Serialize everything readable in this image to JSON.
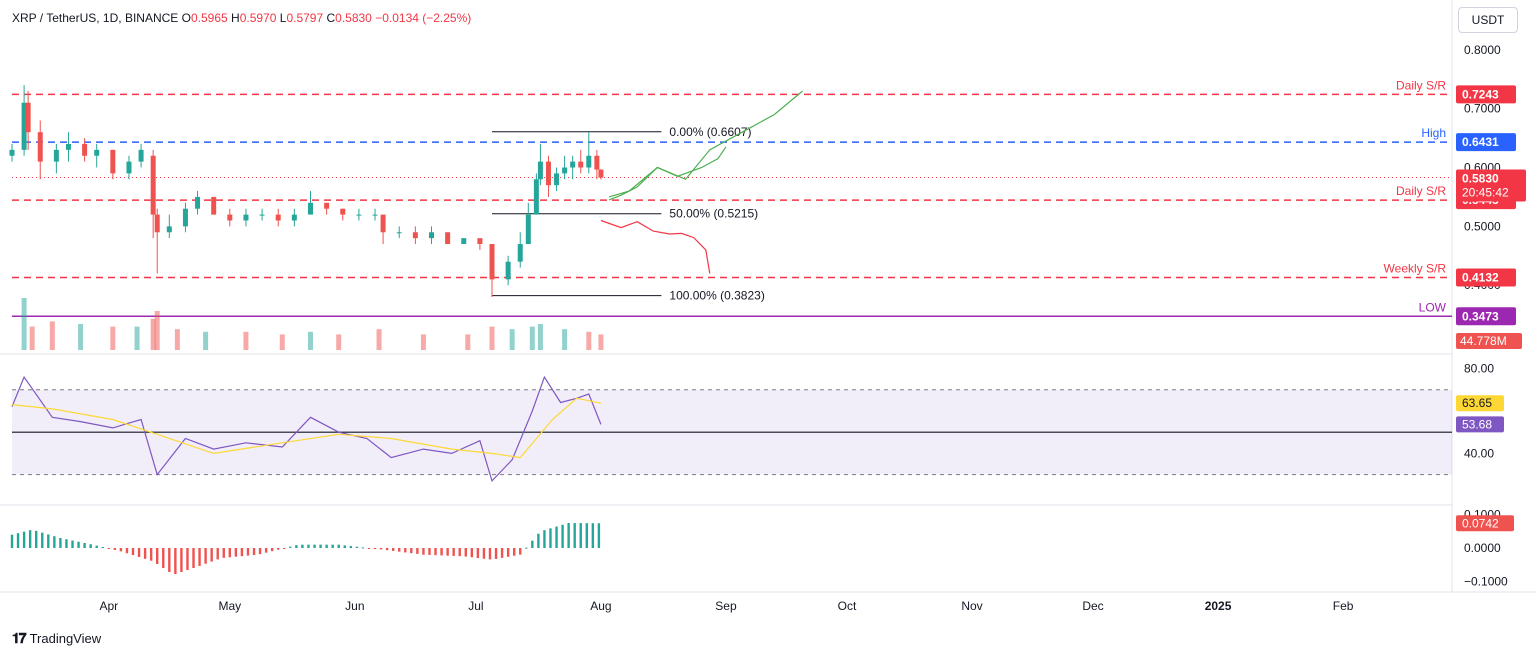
{
  "header": {
    "symbol": "XRP / TetherUS, 1D, BINANCE",
    "open_label": "O",
    "open": "0.5965",
    "high_label": "H",
    "high": "0.5970",
    "low_label": "L",
    "low": "0.5797",
    "close_label": "C",
    "close": "0.5830",
    "change": "−0.0134 (−2.25%)"
  },
  "currency_button": "USDT",
  "branding": {
    "name": "TradingView",
    "logo_icon": "tradingview-logo-icon"
  },
  "colors": {
    "up": "#26a69a",
    "down": "#ef5350",
    "sr_red": "#f23645",
    "high_blue": "#2962ff",
    "low_purple": "#9c27b0",
    "rsi": "#7e57c2",
    "rsi_ma": "#fdd835",
    "projection_green": "#4caf50",
    "projection_red": "#f23645",
    "current_price": "#f23645",
    "macd_up": "#26a69a",
    "macd_down": "#ef5350"
  },
  "chart_data": [
    {
      "type": "candlestick",
      "title": "XRP / TetherUS, 1D, BINANCE",
      "ylim": [
        0.29,
        0.82
      ],
      "y_ticks": [
        "0.8000",
        "0.7000",
        "0.6000",
        "0.5000",
        "0.4000",
        "0.3000"
      ],
      "x_ticks": [
        "Apr",
        "May",
        "Jun",
        "Jul",
        "Aug",
        "Sep",
        "Oct",
        "Nov",
        "Dec",
        "2025",
        "Feb"
      ],
      "x_range": [
        "2024-03-08",
        "2025-02-28"
      ],
      "ohlc_points": [
        [
          "2024-03-08",
          0.62,
          0.64,
          0.61,
          0.63
        ],
        [
          "2024-03-11",
          0.63,
          0.74,
          0.62,
          0.71
        ],
        [
          "2024-03-12",
          0.71,
          0.73,
          0.63,
          0.66
        ],
        [
          "2024-03-15",
          0.66,
          0.68,
          0.58,
          0.61
        ],
        [
          "2024-03-19",
          0.61,
          0.64,
          0.59,
          0.63
        ],
        [
          "2024-03-22",
          0.63,
          0.66,
          0.61,
          0.64
        ],
        [
          "2024-03-26",
          0.64,
          0.65,
          0.61,
          0.62
        ],
        [
          "2024-03-29",
          0.62,
          0.64,
          0.6,
          0.63
        ],
        [
          "2024-04-02",
          0.63,
          0.63,
          0.58,
          0.59
        ],
        [
          "2024-04-06",
          0.59,
          0.62,
          0.58,
          0.61
        ],
        [
          "2024-04-09",
          0.61,
          0.64,
          0.6,
          0.63
        ],
        [
          "2024-04-12",
          0.62,
          0.63,
          0.48,
          0.52
        ],
        [
          "2024-04-13",
          0.52,
          0.53,
          0.42,
          0.49
        ],
        [
          "2024-04-16",
          0.49,
          0.52,
          0.48,
          0.5
        ],
        [
          "2024-04-20",
          0.5,
          0.54,
          0.49,
          0.53
        ],
        [
          "2024-04-23",
          0.53,
          0.56,
          0.52,
          0.55
        ],
        [
          "2024-04-27",
          0.55,
          0.55,
          0.52,
          0.52
        ],
        [
          "2024-05-01",
          0.52,
          0.53,
          0.5,
          0.51
        ],
        [
          "2024-05-05",
          0.51,
          0.53,
          0.5,
          0.52
        ],
        [
          "2024-05-09",
          0.52,
          0.53,
          0.51,
          0.52
        ],
        [
          "2024-05-13",
          0.52,
          0.53,
          0.5,
          0.51
        ],
        [
          "2024-05-17",
          0.51,
          0.53,
          0.5,
          0.52
        ],
        [
          "2024-05-21",
          0.52,
          0.56,
          0.52,
          0.54
        ],
        [
          "2024-05-25",
          0.54,
          0.54,
          0.52,
          0.53
        ],
        [
          "2024-05-29",
          0.53,
          0.53,
          0.51,
          0.52
        ],
        [
          "2024-06-02",
          0.52,
          0.53,
          0.51,
          0.52
        ],
        [
          "2024-06-06",
          0.52,
          0.53,
          0.51,
          0.52
        ],
        [
          "2024-06-08",
          0.52,
          0.52,
          0.47,
          0.49
        ],
        [
          "2024-06-12",
          0.49,
          0.5,
          0.48,
          0.49
        ],
        [
          "2024-06-16",
          0.49,
          0.5,
          0.47,
          0.48
        ],
        [
          "2024-06-20",
          0.48,
          0.5,
          0.47,
          0.49
        ],
        [
          "2024-06-24",
          0.49,
          0.49,
          0.47,
          0.47
        ],
        [
          "2024-06-28",
          0.47,
          0.48,
          0.47,
          0.48
        ],
        [
          "2024-07-02",
          0.48,
          0.48,
          0.46,
          0.47
        ],
        [
          "2024-07-05",
          0.47,
          0.47,
          0.38,
          0.41
        ],
        [
          "2024-07-09",
          0.41,
          0.45,
          0.4,
          0.44
        ],
        [
          "2024-07-12",
          0.44,
          0.49,
          0.43,
          0.47
        ],
        [
          "2024-07-14",
          0.47,
          0.54,
          0.47,
          0.52
        ],
        [
          "2024-07-16",
          0.52,
          0.59,
          0.52,
          0.58
        ],
        [
          "2024-07-17",
          0.58,
          0.64,
          0.57,
          0.61
        ],
        [
          "2024-07-19",
          0.61,
          0.62,
          0.55,
          0.57
        ],
        [
          "2024-07-21",
          0.57,
          0.6,
          0.56,
          0.59
        ],
        [
          "2024-07-23",
          0.59,
          0.62,
          0.58,
          0.6
        ],
        [
          "2024-07-25",
          0.6,
          0.62,
          0.58,
          0.61
        ],
        [
          "2024-07-27",
          0.61,
          0.63,
          0.59,
          0.6
        ],
        [
          "2024-07-29",
          0.6,
          0.66,
          0.59,
          0.62
        ],
        [
          "2024-07-31",
          0.62,
          0.63,
          0.58,
          0.5965
        ],
        [
          "2024-08-01",
          0.5965,
          0.597,
          0.5797,
          0.583
        ]
      ],
      "current_price": "0.5830",
      "countdown": "20:45:42",
      "horizontal_levels": [
        {
          "label": "Daily S/R",
          "value": 0.7243,
          "value_text": "0.7243",
          "style": "dashed",
          "color": "#f23645"
        },
        {
          "label": "High",
          "value": 0.6431,
          "value_text": "0.6431",
          "style": "dashed",
          "color": "#2962ff"
        },
        {
          "label": "Daily S/R",
          "value": 0.5445,
          "value_text": "0.5445",
          "style": "dashed",
          "color": "#f23645"
        },
        {
          "label": "Weekly S/R",
          "value": 0.4132,
          "value_text": "0.4132",
          "style": "dashed",
          "color": "#f23645"
        },
        {
          "label": "LOW",
          "value": 0.3473,
          "value_text": "0.3473",
          "style": "solid",
          "color": "#9c27b0"
        }
      ],
      "fibonacci": {
        "from_date": "2024-07-05",
        "to_date": "2024-08-16",
        "levels": [
          {
            "label": "0.00% (0.6607)",
            "value": 0.6607
          },
          {
            "label": "50.00% (0.5215)",
            "value": 0.5215
          },
          {
            "label": "100.00% (0.3823)",
            "value": 0.3823
          }
        ]
      },
      "projections": [
        {
          "color": "green",
          "points": [
            [
              "2024-08-03",
              0.55
            ],
            [
              "2024-08-08",
              0.56
            ],
            [
              "2024-08-15",
              0.6
            ],
            [
              "2024-08-22",
              0.58
            ],
            [
              "2024-08-28",
              0.63
            ],
            [
              "2024-09-05",
              0.66
            ],
            [
              "2024-09-13",
              0.69
            ],
            [
              "2024-09-20",
              0.73
            ]
          ]
        },
        {
          "color": "green",
          "points": [
            [
              "2024-08-03",
              0.545
            ],
            [
              "2024-08-06",
              0.553
            ],
            [
              "2024-08-10",
              0.567
            ],
            [
              "2024-08-15",
              0.6
            ],
            [
              "2024-08-20",
              0.585
            ],
            [
              "2024-08-26",
              0.6
            ],
            [
              "2024-08-30",
              0.615
            ],
            [
              "2024-09-01",
              0.635
            ]
          ]
        },
        {
          "color": "red",
          "points": [
            [
              "2024-08-01",
              0.51
            ],
            [
              "2024-08-06",
              0.498
            ],
            [
              "2024-08-10",
              0.508
            ],
            [
              "2024-08-14",
              0.492
            ],
            [
              "2024-08-18",
              0.487
            ],
            [
              "2024-08-21",
              0.488
            ],
            [
              "2024-08-24",
              0.481
            ],
            [
              "2024-08-27",
              0.46
            ],
            [
              "2024-08-28",
              0.42
            ]
          ]
        }
      ]
    },
    {
      "type": "bar",
      "title": "Volume",
      "current_value": "44.778M",
      "x_range": [
        "2024-03-08",
        "2025-02-28"
      ],
      "bars": [
        [
          "2024-03-11",
          1.0,
          "up"
        ],
        [
          "2024-03-13",
          0.45,
          "down"
        ],
        [
          "2024-03-18",
          0.55,
          "down"
        ],
        [
          "2024-03-25",
          0.5,
          "up"
        ],
        [
          "2024-04-02",
          0.45,
          "down"
        ],
        [
          "2024-04-08",
          0.45,
          "up"
        ],
        [
          "2024-04-12",
          0.6,
          "down"
        ],
        [
          "2024-04-13",
          0.75,
          "down"
        ],
        [
          "2024-04-18",
          0.4,
          "down"
        ],
        [
          "2024-04-25",
          0.35,
          "up"
        ],
        [
          "2024-05-05",
          0.35,
          "down"
        ],
        [
          "2024-05-14",
          0.3,
          "down"
        ],
        [
          "2024-05-21",
          0.35,
          "up"
        ],
        [
          "2024-05-28",
          0.3,
          "down"
        ],
        [
          "2024-06-07",
          0.4,
          "down"
        ],
        [
          "2024-06-18",
          0.3,
          "down"
        ],
        [
          "2024-06-29",
          0.3,
          "down"
        ],
        [
          "2024-07-05",
          0.45,
          "down"
        ],
        [
          "2024-07-10",
          0.4,
          "up"
        ],
        [
          "2024-07-15",
          0.45,
          "up"
        ],
        [
          "2024-07-17",
          0.5,
          "up"
        ],
        [
          "2024-07-23",
          0.4,
          "up"
        ],
        [
          "2024-07-29",
          0.35,
          "down"
        ],
        [
          "2024-08-01",
          0.3,
          "down"
        ]
      ]
    },
    {
      "type": "line",
      "title": "RSI",
      "ylim": [
        18,
        85
      ],
      "y_ticks": [
        "80.00",
        "40.00"
      ],
      "band": [
        70,
        30
      ],
      "midline": 50,
      "rsi_value": "53.68",
      "ma_value": "63.65",
      "series": [
        {
          "role": "rsi",
          "points": [
            [
              "2024-03-08",
              62
            ],
            [
              "2024-03-11",
              76
            ],
            [
              "2024-03-18",
              57
            ],
            [
              "2024-03-25",
              55
            ],
            [
              "2024-04-02",
              52
            ],
            [
              "2024-04-09",
              56
            ],
            [
              "2024-04-13",
              30
            ],
            [
              "2024-04-20",
              47
            ],
            [
              "2024-04-27",
              42
            ],
            [
              "2024-05-05",
              45
            ],
            [
              "2024-05-14",
              43
            ],
            [
              "2024-05-21",
              57
            ],
            [
              "2024-05-28",
              50
            ],
            [
              "2024-06-04",
              47
            ],
            [
              "2024-06-10",
              38
            ],
            [
              "2024-06-18",
              42
            ],
            [
              "2024-06-25",
              40
            ],
            [
              "2024-07-02",
              46
            ],
            [
              "2024-07-05",
              27
            ],
            [
              "2024-07-10",
              37
            ],
            [
              "2024-07-15",
              60
            ],
            [
              "2024-07-18",
              76
            ],
            [
              "2024-07-22",
              64
            ],
            [
              "2024-07-26",
              66
            ],
            [
              "2024-07-29",
              68
            ],
            [
              "2024-08-01",
              53.68
            ]
          ]
        },
        {
          "role": "ma",
          "points": [
            [
              "2024-03-08",
              63
            ],
            [
              "2024-03-18",
              61
            ],
            [
              "2024-04-02",
              56
            ],
            [
              "2024-04-13",
              49
            ],
            [
              "2024-04-27",
              40
            ],
            [
              "2024-05-14",
              45
            ],
            [
              "2024-05-28",
              49
            ],
            [
              "2024-06-10",
              47
            ],
            [
              "2024-06-25",
              42
            ],
            [
              "2024-07-05",
              40
            ],
            [
              "2024-07-12",
              38
            ],
            [
              "2024-07-20",
              56
            ],
            [
              "2024-07-26",
              66
            ],
            [
              "2024-08-01",
              63.65
            ]
          ]
        }
      ]
    },
    {
      "type": "bar",
      "title": "MACD",
      "ylim": [
        -0.12,
        0.12
      ],
      "y_ticks": [
        "0.1000",
        "0.0000",
        "−0.1000"
      ],
      "current_value": "0.0742",
      "histogram": [
        [
          "2024-03-08",
          0.04
        ],
        [
          "2024-03-13",
          0.055
        ],
        [
          "2024-03-20",
          0.03
        ],
        [
          "2024-03-28",
          0.01
        ],
        [
          "2024-04-04",
          -0.01
        ],
        [
          "2024-04-12",
          -0.04
        ],
        [
          "2024-04-17",
          -0.08
        ],
        [
          "2024-04-22",
          -0.06
        ],
        [
          "2024-04-29",
          -0.03
        ],
        [
          "2024-05-08",
          -0.02
        ],
        [
          "2024-05-18",
          0.01
        ],
        [
          "2024-05-28",
          0.01
        ],
        [
          "2024-06-08",
          -0.005
        ],
        [
          "2024-06-18",
          -0.02
        ],
        [
          "2024-06-28",
          -0.025
        ],
        [
          "2024-07-05",
          -0.035
        ],
        [
          "2024-07-12",
          -0.02
        ],
        [
          "2024-07-17",
          0.05
        ],
        [
          "2024-07-24",
          0.075
        ],
        [
          "2024-08-01",
          0.0742
        ]
      ]
    }
  ]
}
